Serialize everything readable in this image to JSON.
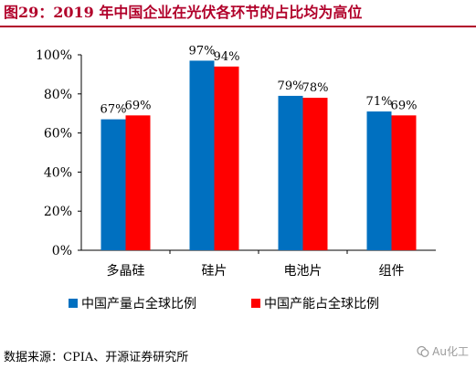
{
  "title": "图29：2019 年中国企业在光伏各环节的占比均为高位",
  "source": "数据来源：CPIA、开源证券研究所",
  "watermark": "Au化工",
  "chart_data": {
    "type": "bar",
    "categories": [
      "多晶硅",
      "硅片",
      "电池片",
      "组件"
    ],
    "series": [
      {
        "name": "中国产量占全球比例",
        "values": [
          67,
          97,
          79,
          71
        ],
        "color": "#0070c0"
      },
      {
        "name": "中国产能占全球比例",
        "values": [
          69,
          94,
          78,
          69
        ],
        "color": "#ff0000"
      }
    ],
    "value_labels": [
      [
        "67%",
        "97%",
        "79%",
        "71%"
      ],
      [
        "69%",
        "94%",
        "78%",
        "69%"
      ]
    ],
    "yticks": [
      "0%",
      "20%",
      "40%",
      "60%",
      "80%",
      "100%"
    ],
    "ylim": [
      0,
      100
    ],
    "legend_position": "bottom",
    "grid": false
  }
}
